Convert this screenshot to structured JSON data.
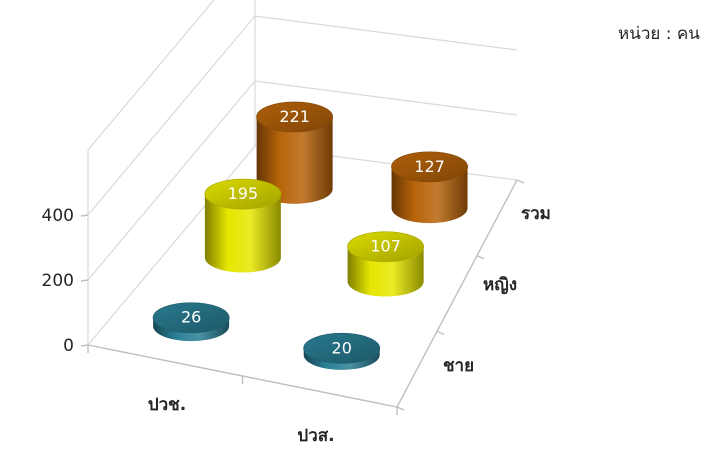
{
  "unit_label": "หน่วย : คน",
  "chart_data": {
    "type": "bar",
    "style": "3d-cylinder",
    "categories": [
      "ปวช.",
      "ปวส."
    ],
    "series": [
      {
        "name": "ชาย",
        "values": [
          26,
          20
        ],
        "color": "#2a7f95"
      },
      {
        "name": "หญิง",
        "values": [
          195,
          107
        ],
        "color": "#e6e600"
      },
      {
        "name": "รวม",
        "values": [
          221,
          127
        ],
        "color": "#b8640a"
      }
    ],
    "z_tick_labels": [
      "0",
      "200",
      "400"
    ],
    "ylim": [
      0,
      400
    ],
    "grid": true
  }
}
